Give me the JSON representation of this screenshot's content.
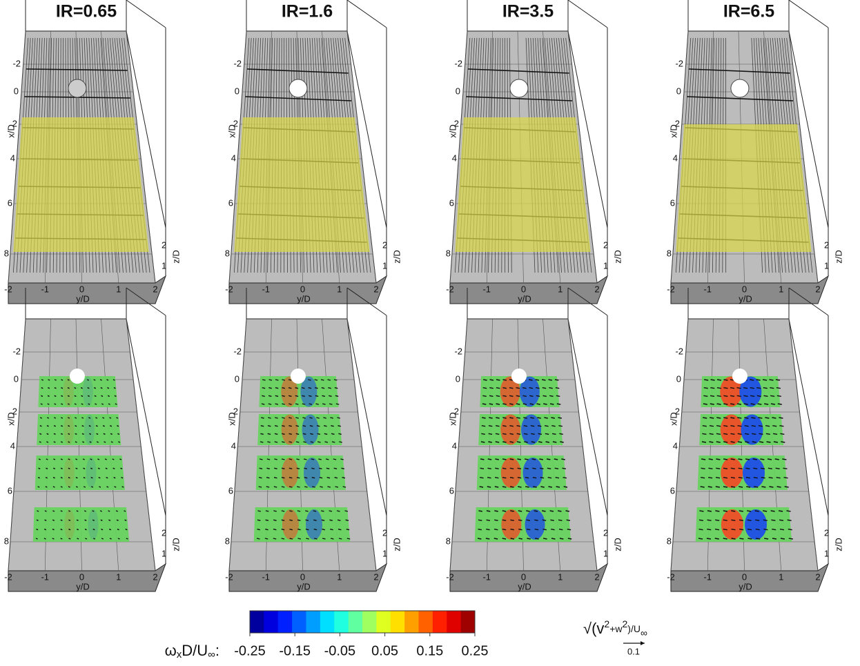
{
  "panels": {
    "titles": [
      "IR=0.65",
      "IR=1.6",
      "IR=3.5",
      "IR=6.5"
    ]
  },
  "axes": {
    "y_label": "y/D",
    "y_ticks": [
      "-2",
      "-1",
      "0",
      "1",
      "2"
    ],
    "x_label": "x/D",
    "x_ticks": [
      "-2",
      "0",
      "2",
      "4",
      "6",
      "8"
    ],
    "z_label": "z/D",
    "z_ticks": [
      "1",
      "2"
    ]
  },
  "colorbar": {
    "label": {
      "symbol": "ω",
      "subscript": "x",
      "rest": "D/U",
      "sub2": "∞",
      "suffix": ":"
    },
    "lim": [
      -0.25,
      0.25
    ],
    "ticks": [
      -0.25,
      -0.15,
      -0.05,
      0.05,
      0.15,
      0.25
    ]
  },
  "vector_reference": {
    "label": {
      "pre": "√(v",
      "sup1": "2",
      "mid": "+w",
      "sup2": "2",
      "post": ")/U",
      "sub": "∞"
    },
    "value": 0.1
  }
}
